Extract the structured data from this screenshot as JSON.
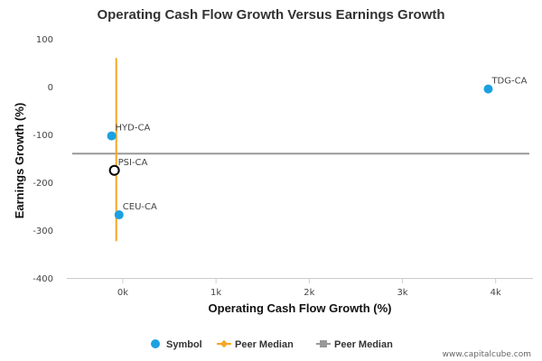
{
  "chart_data": {
    "type": "scatter",
    "title": "Operating Cash Flow Growth Versus Earnings Growth",
    "xlabel": "Operating Cash Flow Growth (%)",
    "ylabel": "Earnings Growth (%)",
    "xlim": [
      -600,
      4400
    ],
    "ylim": [
      -400,
      100
    ],
    "x_ticks": [
      0,
      1000,
      2000,
      3000,
      4000
    ],
    "x_tick_labels": [
      "0k",
      "1k",
      "2k",
      "3k",
      "4k"
    ],
    "y_ticks": [
      100,
      0,
      -100,
      -200,
      -300,
      -400
    ],
    "y_tick_labels": [
      "100",
      "0",
      "-100",
      "-200",
      "-300",
      "-400"
    ],
    "grid": false,
    "points": [
      {
        "label": "TDG-CA",
        "x": 3920,
        "y": -5,
        "style": "filled"
      },
      {
        "label": "HYD-CA",
        "x": -120,
        "y": -103,
        "style": "filled"
      },
      {
        "label": "PSI-CA",
        "x": -90,
        "y": -175,
        "style": "hollow"
      },
      {
        "label": "CEU-CA",
        "x": -40,
        "y": -268,
        "style": "filled"
      }
    ],
    "peer_median_x": -70,
    "peer_median_x_span": [
      60,
      -323
    ],
    "peer_median_y": -140,
    "legend": {
      "position": "bottom",
      "items": [
        {
          "label": "Symbol",
          "marker": "circle",
          "color": "#1ba1e2"
        },
        {
          "label": "Peer Median",
          "marker": "line-diamond",
          "color": "#f5a623"
        },
        {
          "label": "Peer Median",
          "marker": "line-square",
          "color": "#999999"
        }
      ]
    },
    "colors": {
      "symbol": "#1ba1e2",
      "x_median": "#f5a623",
      "y_median": "#999999",
      "axis": "#cccccc"
    }
  },
  "credit": "www.capitalcube.com"
}
